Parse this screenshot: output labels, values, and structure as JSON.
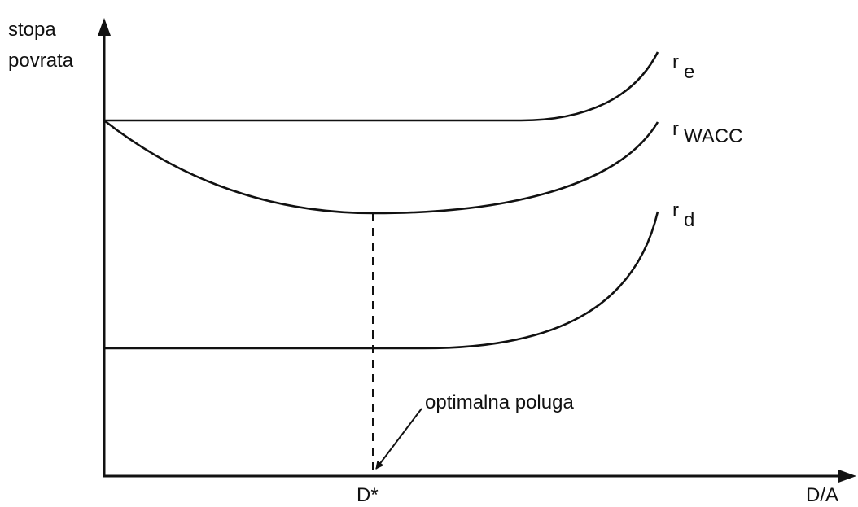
{
  "axes": {
    "y_label": [
      "stopa",
      "povrata"
    ],
    "x_label": "D/A",
    "x_mark": "D*"
  },
  "curves": [
    {
      "symbol": "r",
      "subscript": "e"
    },
    {
      "symbol": "r",
      "subscript": "WACC"
    },
    {
      "symbol": "r",
      "subscript": "d"
    }
  ],
  "annotation": "optimalna poluga"
}
